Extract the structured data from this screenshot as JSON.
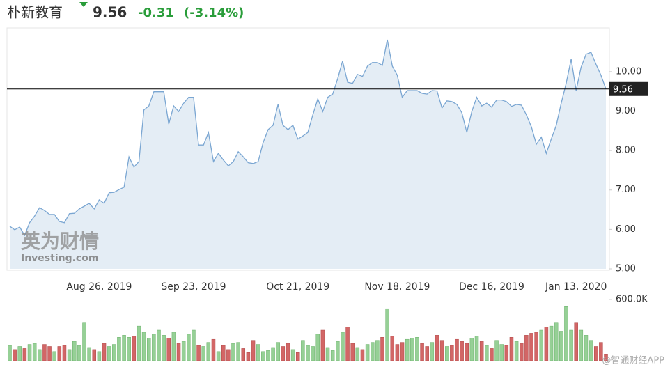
{
  "header": {
    "name": "朴新教育",
    "price": "9.56",
    "change": "-0.31",
    "change_pct": "(-3.14%)"
  },
  "watermarks": {
    "logo_cn": "英为财情",
    "logo_en": "Investing.com",
    "source": "@智通财经APP"
  },
  "chart_data": [
    {
      "type": "area",
      "color": "#7aa6d2",
      "fill": "#e4edf5",
      "categories": [
        null,
        null,
        null,
        null,
        null,
        null,
        null,
        null,
        null,
        null,
        null,
        null,
        null,
        null,
        null,
        null,
        null,
        null,
        "Aug 26, 2019",
        null,
        null,
        null,
        null,
        null,
        null,
        null,
        null,
        null,
        null,
        null,
        null,
        null,
        null,
        null,
        null,
        null,
        null,
        "Sep 23, 2019",
        null,
        null,
        null,
        null,
        null,
        null,
        null,
        null,
        null,
        null,
        null,
        null,
        null,
        null,
        null,
        null,
        null,
        null,
        null,
        null,
        "Oct 21, 2019",
        null,
        null,
        null,
        null,
        null,
        null,
        null,
        null,
        null,
        null,
        null,
        null,
        null,
        null,
        null,
        null,
        null,
        null,
        null,
        "Nov 18, 2019",
        null,
        null,
        null,
        null,
        null,
        null,
        null,
        null,
        null,
        null,
        null,
        null,
        null,
        null,
        null,
        null,
        null,
        null,
        "Dec 16, 2019",
        null,
        null,
        null,
        null,
        null,
        null,
        null,
        null,
        null,
        null,
        null,
        null,
        null,
        null,
        null,
        null,
        "Jan 13, 2020",
        null,
        null,
        null,
        null,
        null,
        null
      ],
      "values": [
        6.08,
        5.99,
        6.06,
        5.85,
        6.17,
        6.34,
        6.55,
        6.48,
        6.38,
        6.38,
        6.2,
        6.17,
        6.4,
        6.41,
        6.52,
        6.59,
        6.66,
        6.52,
        6.75,
        6.66,
        6.93,
        6.94,
        7.01,
        7.07,
        7.84,
        7.58,
        7.72,
        9.03,
        9.13,
        9.49,
        9.49,
        9.49,
        8.67,
        9.13,
        8.99,
        9.2,
        9.35,
        9.35,
        8.14,
        8.14,
        8.46,
        7.72,
        7.93,
        7.76,
        7.61,
        7.72,
        7.97,
        7.84,
        7.69,
        7.67,
        7.72,
        8.2,
        8.53,
        8.64,
        9.17,
        8.64,
        8.53,
        8.64,
        8.29,
        8.37,
        8.46,
        8.9,
        9.31,
        8.99,
        9.35,
        9.43,
        9.82,
        10.27,
        9.73,
        9.7,
        9.93,
        9.88,
        10.14,
        10.23,
        10.23,
        10.16,
        10.81,
        10.14,
        9.91,
        9.35,
        9.52,
        9.52,
        9.52,
        9.45,
        9.43,
        9.52,
        9.51,
        9.08,
        9.26,
        9.24,
        9.17,
        8.96,
        8.46,
        8.99,
        9.35,
        9.13,
        9.2,
        9.1,
        9.28,
        9.28,
        9.24,
        9.12,
        9.17,
        9.15,
        8.9,
        8.6,
        8.16,
        8.34,
        7.93,
        8.29,
        8.64,
        9.2,
        9.7,
        10.32,
        9.52,
        10.11,
        10.44,
        10.49,
        10.19,
        9.91,
        9.56
      ],
      "ylim": [
        5,
        11.11
      ],
      "yticks": [
        {
          "value": 5,
          "label": "5.00"
        },
        {
          "value": 6,
          "label": "6.00"
        },
        {
          "value": 7,
          "label": "7.00"
        },
        {
          "value": 8,
          "label": "8.00"
        },
        {
          "value": 9,
          "label": "9.00"
        },
        {
          "value": 10,
          "label": "10.00"
        }
      ],
      "last_price": 9.56
    },
    {
      "type": "bar",
      "up_color": "#96d096",
      "down_color": "#d26666",
      "values": [
        150000,
        110000,
        140000,
        120000,
        160000,
        170000,
        110000,
        160000,
        140000,
        90000,
        140000,
        150000,
        110000,
        190000,
        150000,
        370000,
        130000,
        110000,
        90000,
        170000,
        140000,
        160000,
        230000,
        250000,
        230000,
        240000,
        340000,
        280000,
        220000,
        260000,
        300000,
        250000,
        220000,
        280000,
        170000,
        190000,
        260000,
        300000,
        150000,
        140000,
        180000,
        210000,
        90000,
        150000,
        110000,
        170000,
        180000,
        120000,
        80000,
        200000,
        160000,
        90000,
        100000,
        130000,
        180000,
        140000,
        170000,
        110000,
        80000,
        200000,
        150000,
        140000,
        260000,
        300000,
        130000,
        100000,
        190000,
        280000,
        330000,
        170000,
        130000,
        110000,
        160000,
        180000,
        200000,
        230000,
        510000,
        240000,
        160000,
        180000,
        210000,
        220000,
        230000,
        170000,
        140000,
        180000,
        250000,
        200000,
        140000,
        150000,
        210000,
        190000,
        170000,
        220000,
        240000,
        190000,
        150000,
        120000,
        200000,
        160000,
        150000,
        230000,
        190000,
        170000,
        250000,
        270000,
        280000,
        300000,
        330000,
        340000,
        370000,
        290000,
        530000,
        300000,
        370000,
        300000,
        250000,
        200000,
        140000,
        180000,
        60000
      ],
      "ylim": [
        0,
        600000
      ],
      "yticks": [
        {
          "value": 600000,
          "label": "600.0K"
        }
      ]
    }
  ]
}
